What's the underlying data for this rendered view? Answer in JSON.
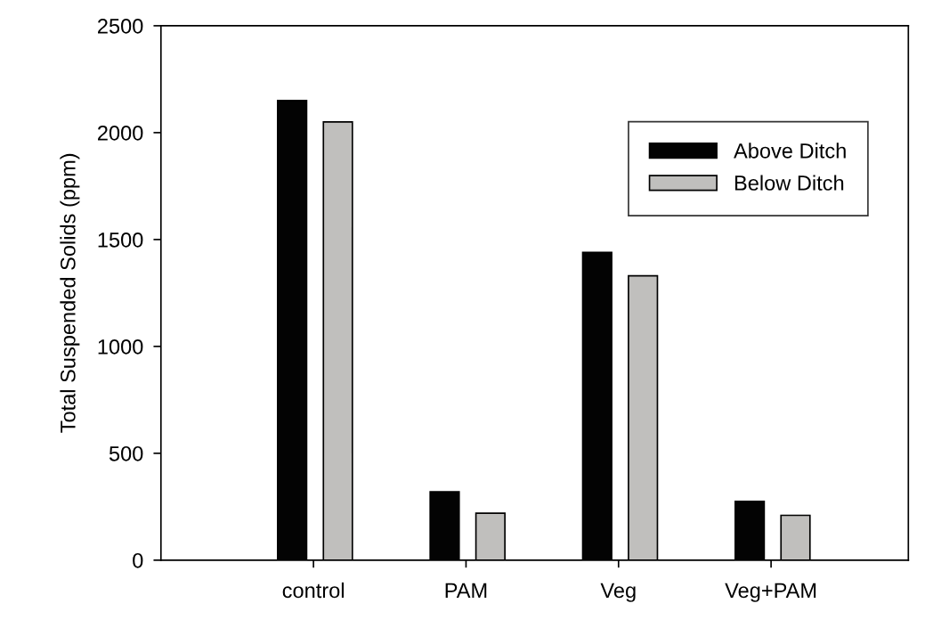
{
  "chart_data": {
    "type": "bar",
    "ylabel": "Total Suspended Solids (ppm)",
    "categories": [
      "control",
      "PAM",
      "Veg",
      "Veg+PAM"
    ],
    "series": [
      {
        "name": "Above Ditch",
        "color": "#030303",
        "values": [
          2150,
          320,
          1440,
          275
        ]
      },
      {
        "name": "Below Ditch",
        "color": "#c0bfbd",
        "values": [
          2050,
          220,
          1330,
          210
        ]
      }
    ],
    "ylim": [
      0,
      2500
    ],
    "yticks": [
      0,
      500,
      1000,
      1500,
      2000,
      2500
    ],
    "grid": false,
    "legend": "top right"
  }
}
